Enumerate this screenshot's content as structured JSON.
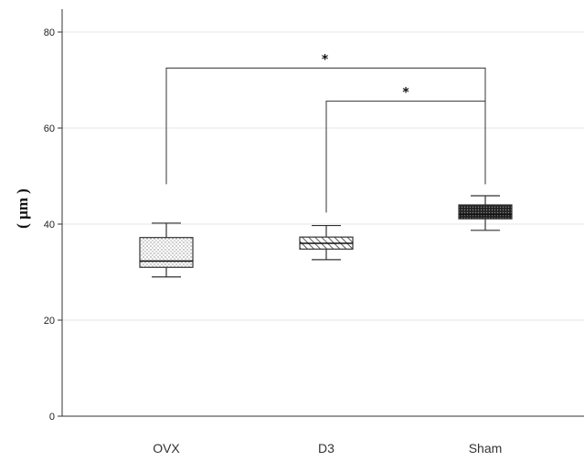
{
  "chart_data": {
    "type": "box",
    "ylabel": "( μm )",
    "ylim": [
      0,
      84
    ],
    "yticks": [
      0,
      20,
      40,
      60,
      80
    ],
    "grid": true,
    "categories": [
      "OVX",
      "D3",
      "Sham"
    ],
    "boxes": [
      {
        "category": "OVX",
        "min": 29,
        "q1": 31,
        "median": 32.3,
        "q3": 37.2,
        "max": 40.2,
        "pattern": "dots"
      },
      {
        "category": "D3",
        "min": 32.6,
        "q1": 34.8,
        "median": 36,
        "q3": 37.3,
        "max": 39.7,
        "pattern": "hatch"
      },
      {
        "category": "Sham",
        "min": 38.7,
        "q1": 41.1,
        "median": 42,
        "q3": 44,
        "max": 45.9,
        "pattern": "dense"
      }
    ],
    "significance": [
      {
        "from": "OVX",
        "to": "Sham",
        "y": 72.5,
        "left_end": 48.3,
        "right_end": 48.3,
        "label": "*"
      },
      {
        "from": "D3",
        "to": "Sham",
        "y": 65.6,
        "left_end": 42.4,
        "right_end": 48.3,
        "label": "*"
      }
    ]
  }
}
